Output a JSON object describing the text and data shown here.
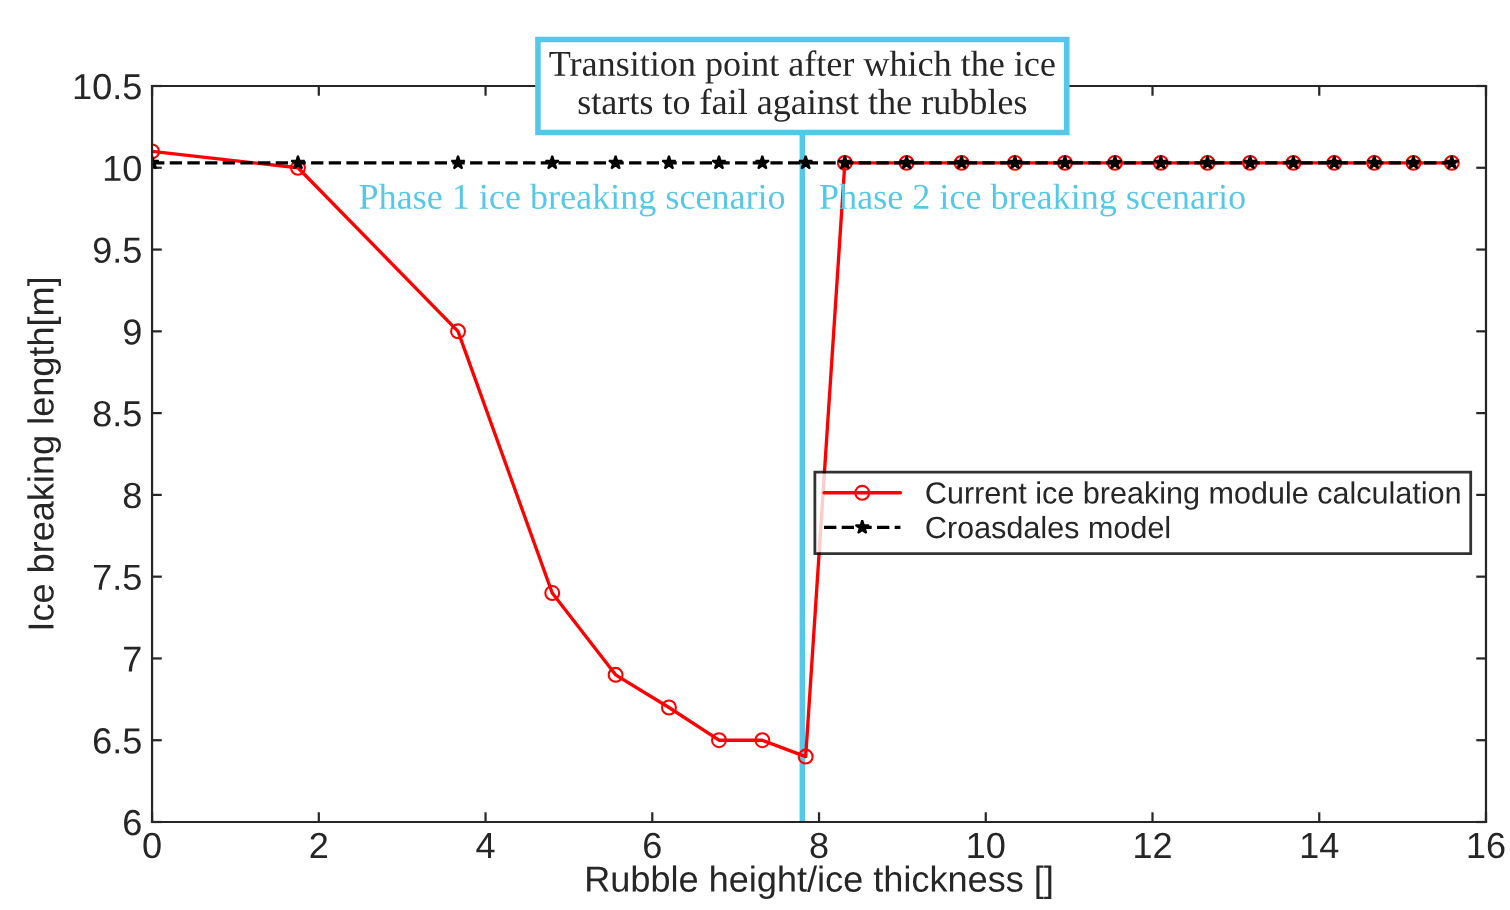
{
  "chart_data": {
    "type": "line",
    "xlabel": "Rubble height/ice thickness []",
    "ylabel": "Ice breaking length[m]",
    "xlim": [
      0,
      16
    ],
    "xticks": [
      0,
      2,
      4,
      6,
      8,
      10,
      12,
      14,
      16
    ],
    "ylim": [
      6,
      10.5
    ],
    "yticks": [
      6,
      6.5,
      7,
      7.5,
      8,
      8.5,
      9,
      9.5,
      10,
      10.5
    ],
    "x": [
      0,
      1.75,
      3.67,
      4.8,
      5.56,
      6.2,
      6.8,
      7.32,
      7.84,
      8.31,
      9.05,
      9.71,
      10.35,
      10.95,
      11.55,
      12.1,
      12.66,
      13.17,
      13.69,
      14.18,
      14.66,
      15.13,
      15.59
    ],
    "series": [
      {
        "name": "Current ice breaking module calculation",
        "color": "#ff0000",
        "marker": "circle",
        "line_style": "solid",
        "values": [
          10.1,
          10.0,
          9.0,
          7.4,
          6.9,
          6.7,
          6.5,
          6.5,
          6.4,
          10.03,
          10.03,
          10.03,
          10.03,
          10.03,
          10.03,
          10.03,
          10.03,
          10.03,
          10.03,
          10.03,
          10.03,
          10.03,
          10.03
        ]
      },
      {
        "name": "Croasdales model",
        "color": "#000000",
        "marker": "star",
        "line_style": "dashed",
        "values": [
          10.03,
          10.03,
          10.03,
          10.03,
          10.03,
          10.03,
          10.03,
          10.03,
          10.03,
          10.03,
          10.03,
          10.03,
          10.03,
          10.03,
          10.03,
          10.03,
          10.03,
          10.03,
          10.03,
          10.03,
          10.03,
          10.03,
          10.03
        ]
      }
    ],
    "ref_lines": [
      {
        "axis": "x",
        "value": 7.8,
        "label": "Transition point after which the ice\nstarts to fail against the rubbles",
        "color": "#55c8ea"
      }
    ],
    "annotations": [
      "Phase 1 ice breaking scenario",
      "Phase 2 ice breaking scenario"
    ],
    "legend": "right",
    "grid": false
  }
}
